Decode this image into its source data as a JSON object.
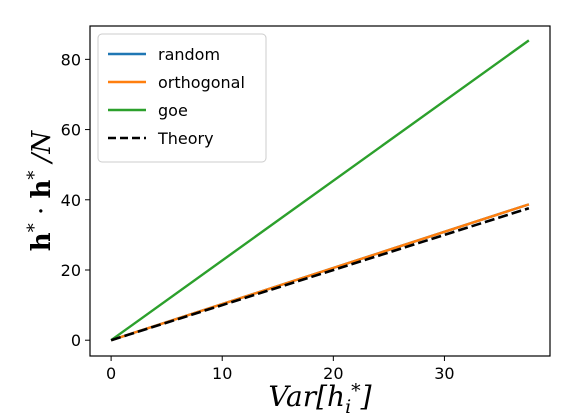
{
  "chart_data": {
    "type": "line",
    "xlabel": "Var[h_i*]",
    "ylabel": "h* · h* / N",
    "xlim": [
      -1.9,
      39.5
    ],
    "ylim": [
      -4.5,
      89.5
    ],
    "xticks": [
      0,
      10,
      20,
      30
    ],
    "yticks": [
      0,
      20,
      40,
      60,
      80
    ],
    "grid": false,
    "legend_position": "top-left",
    "series": [
      {
        "name": "random",
        "color": "#1f77b4",
        "dash": "solid",
        "x": [
          0,
          37.6
        ],
        "y": [
          0,
          38.7
        ]
      },
      {
        "name": "orthogonal",
        "color": "#ff7f0e",
        "dash": "solid",
        "x": [
          0,
          37.6
        ],
        "y": [
          0,
          38.7
        ]
      },
      {
        "name": "goe",
        "color": "#2ca02c",
        "dash": "solid",
        "x": [
          0,
          37.6
        ],
        "y": [
          0,
          85.4
        ]
      },
      {
        "name": "Theory",
        "color": "#000000",
        "dash": "dashed",
        "x": [
          0,
          37.6
        ],
        "y": [
          0,
          37.6
        ]
      }
    ]
  }
}
